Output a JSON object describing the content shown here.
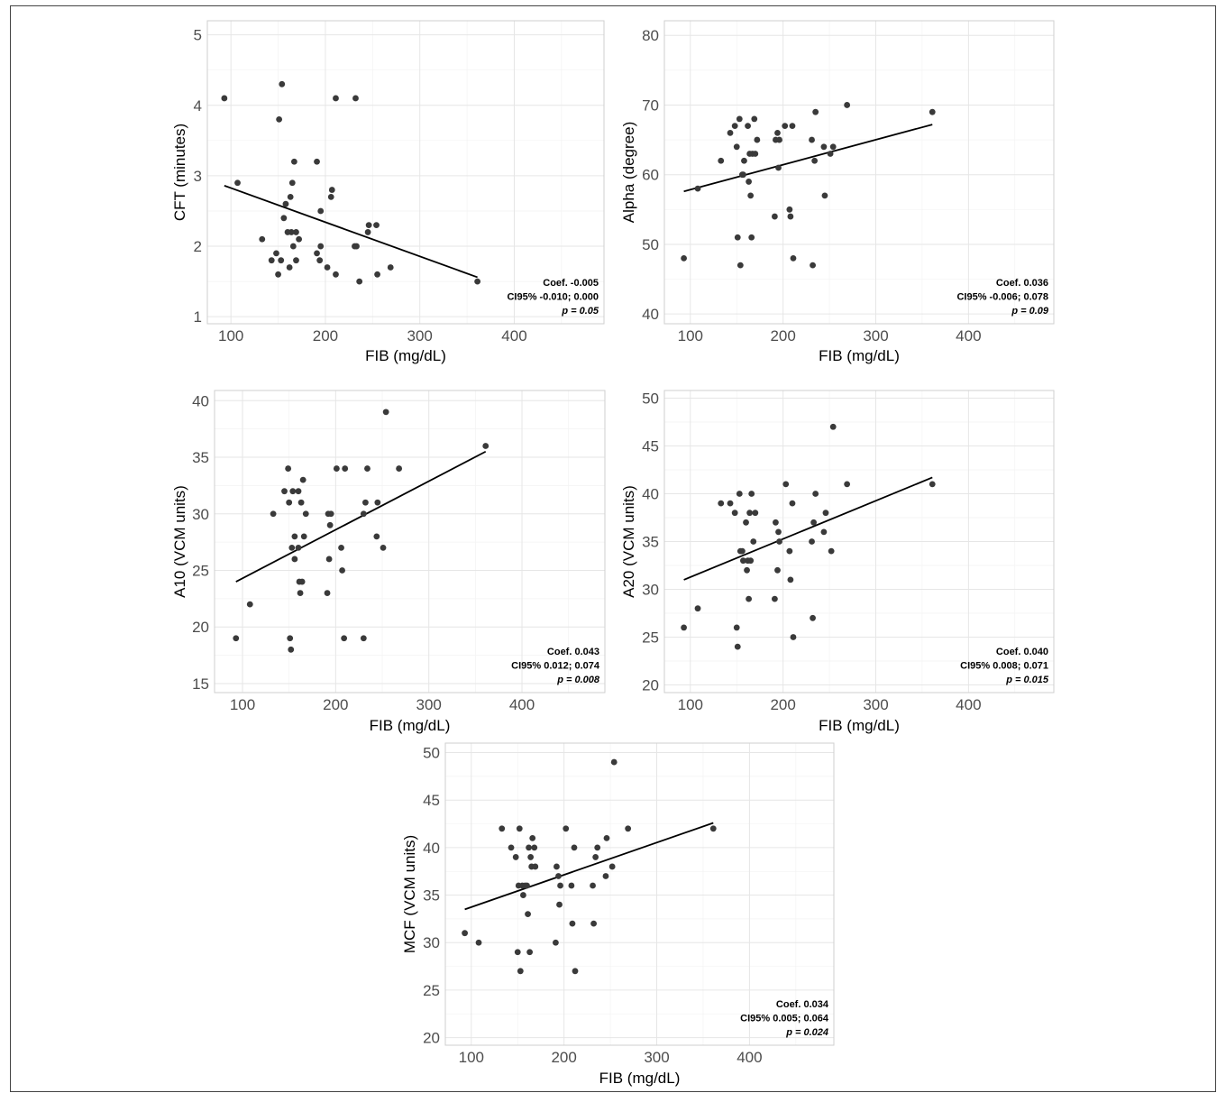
{
  "chart_data": [
    {
      "type": "scatter",
      "xlabel": "FIB (mg/dL)",
      "ylabel": "CFT (minutes)",
      "xlim": [
        75,
        495
      ],
      "ylim": [
        0.9,
        5.2
      ],
      "xticks": [
        100,
        200,
        300,
        400
      ],
      "yticks": [
        1,
        2,
        3,
        4,
        5
      ],
      "points": [
        [
          93,
          4.1
        ],
        [
          107,
          2.9
        ],
        [
          133,
          2.1
        ],
        [
          143,
          1.8
        ],
        [
          148,
          1.9
        ],
        [
          150,
          1.6
        ],
        [
          151,
          3.8
        ],
        [
          153,
          1.8
        ],
        [
          154,
          4.3
        ],
        [
          156,
          2.4
        ],
        [
          158,
          2.6
        ],
        [
          160,
          2.2
        ],
        [
          162,
          1.7
        ],
        [
          163,
          2.7
        ],
        [
          164,
          2.2
        ],
        [
          165,
          2.9
        ],
        [
          166,
          2.0
        ],
        [
          167,
          3.2
        ],
        [
          169,
          1.8
        ],
        [
          169,
          2.2
        ],
        [
          172,
          2.1
        ],
        [
          191,
          1.9
        ],
        [
          191,
          3.2
        ],
        [
          194,
          1.8
        ],
        [
          195,
          2.5
        ],
        [
          195,
          2.0
        ],
        [
          202,
          1.7
        ],
        [
          206,
          2.7
        ],
        [
          207,
          2.8
        ],
        [
          211,
          4.1
        ],
        [
          211,
          1.6
        ],
        [
          231,
          2.0
        ],
        [
          232,
          4.1
        ],
        [
          233,
          2.0
        ],
        [
          236,
          1.5
        ],
        [
          245,
          2.2
        ],
        [
          246,
          2.3
        ],
        [
          254,
          2.3
        ],
        [
          255,
          1.6
        ],
        [
          269,
          1.7
        ],
        [
          361,
          1.5
        ]
      ],
      "fit_line": {
        "x": [
          93,
          361
        ],
        "y": [
          2.86,
          1.56
        ]
      },
      "annotation": {
        "coef": "Coef. -0.005",
        "ci": "CI95% -0.010; 0.000",
        "p": "p = 0.05"
      }
    },
    {
      "type": "scatter",
      "xlabel": "FIB (mg/dL)",
      "ylabel": "Alpha (degree)",
      "xlim": [
        72,
        492
      ],
      "ylim": [
        38.6,
        82.1
      ],
      "xticks": [
        100,
        200,
        300,
        400
      ],
      "yticks": [
        40,
        50,
        60,
        70,
        80
      ],
      "points": [
        [
          93,
          48
        ],
        [
          108,
          58
        ],
        [
          133,
          62
        ],
        [
          143,
          66
        ],
        [
          148,
          67
        ],
        [
          150,
          64
        ],
        [
          151,
          51
        ],
        [
          153,
          68
        ],
        [
          154,
          47
        ],
        [
          156,
          60
        ],
        [
          157,
          60
        ],
        [
          158,
          62
        ],
        [
          162,
          67
        ],
        [
          163,
          59
        ],
        [
          164,
          63
        ],
        [
          165,
          57
        ],
        [
          166,
          51
        ],
        [
          167,
          63
        ],
        [
          169,
          68
        ],
        [
          170,
          63
        ],
        [
          172,
          65
        ],
        [
          191,
          54
        ],
        [
          192,
          65
        ],
        [
          194,
          66
        ],
        [
          195,
          61
        ],
        [
          196,
          65
        ],
        [
          202,
          67
        ],
        [
          207,
          55
        ],
        [
          208,
          54
        ],
        [
          210,
          67
        ],
        [
          211,
          48
        ],
        [
          231,
          65
        ],
        [
          232,
          47
        ],
        [
          234,
          62
        ],
        [
          235,
          69
        ],
        [
          244,
          64
        ],
        [
          245,
          57
        ],
        [
          251,
          63
        ],
        [
          254,
          64
        ],
        [
          269,
          70
        ],
        [
          361,
          69
        ]
      ],
      "fit_line": {
        "x": [
          93,
          361
        ],
        "y": [
          57.6,
          67.2
        ]
      },
      "annotation": {
        "coef": "Coef. 0.036",
        "ci": "CI95% -0.006; 0.078",
        "p": "p = 0.09"
      }
    },
    {
      "type": "scatter",
      "xlabel": "FIB (mg/dL)",
      "ylabel": "A10 (VCM units)",
      "xlim": [
        70,
        489
      ],
      "ylim": [
        14.2,
        40.9
      ],
      "xticks": [
        100,
        200,
        300,
        400
      ],
      "yticks": [
        15,
        20,
        25,
        30,
        35,
        40
      ],
      "points": [
        [
          93,
          19
        ],
        [
          108,
          22
        ],
        [
          133,
          30
        ],
        [
          145,
          32
        ],
        [
          149,
          34
        ],
        [
          150,
          31
        ],
        [
          151,
          19
        ],
        [
          152,
          18
        ],
        [
          153,
          27
        ],
        [
          154,
          32
        ],
        [
          156,
          26
        ],
        [
          156,
          28
        ],
        [
          160,
          32
        ],
        [
          160,
          27
        ],
        [
          161,
          24
        ],
        [
          162,
          23
        ],
        [
          163,
          31
        ],
        [
          164,
          24
        ],
        [
          165,
          33
        ],
        [
          166,
          28
        ],
        [
          168,
          30
        ],
        [
          191,
          23
        ],
        [
          192,
          30
        ],
        [
          193,
          26
        ],
        [
          194,
          29
        ],
        [
          195,
          30
        ],
        [
          201,
          34
        ],
        [
          206,
          27
        ],
        [
          207,
          25
        ],
        [
          209,
          19
        ],
        [
          210,
          34
        ],
        [
          230,
          30
        ],
        [
          230,
          19
        ],
        [
          232,
          31
        ],
        [
          234,
          34
        ],
        [
          244,
          28
        ],
        [
          245,
          31
        ],
        [
          251,
          27
        ],
        [
          254,
          39
        ],
        [
          268,
          34
        ],
        [
          361,
          36
        ]
      ],
      "fit_line": {
        "x": [
          93,
          361
        ],
        "y": [
          24.0,
          35.5
        ]
      },
      "annotation": {
        "coef": "Coef. 0.043",
        "ci": "CI95% 0.012; 0.074",
        "p": "p = 0.008"
      }
    },
    {
      "type": "scatter",
      "xlabel": "FIB (mg/dL)",
      "ylabel": "A20 (VCM units)",
      "xlim": [
        72,
        492
      ],
      "ylim": [
        19.2,
        50.8
      ],
      "xticks": [
        100,
        200,
        300,
        400
      ],
      "yticks": [
        20,
        25,
        30,
        35,
        40,
        45,
        50
      ],
      "points": [
        [
          93,
          26
        ],
        [
          108,
          28
        ],
        [
          133,
          39
        ],
        [
          143,
          39
        ],
        [
          148,
          38
        ],
        [
          150,
          26
        ],
        [
          151,
          24
        ],
        [
          153,
          40
        ],
        [
          154,
          34
        ],
        [
          156,
          34
        ],
        [
          157,
          33
        ],
        [
          160,
          37
        ],
        [
          161,
          32
        ],
        [
          162,
          33
        ],
        [
          163,
          29
        ],
        [
          164,
          38
        ],
        [
          165,
          33
        ],
        [
          166,
          40
        ],
        [
          168,
          35
        ],
        [
          170,
          38
        ],
        [
          191,
          29
        ],
        [
          192,
          37
        ],
        [
          194,
          32
        ],
        [
          195,
          36
        ],
        [
          196,
          35
        ],
        [
          203,
          41
        ],
        [
          207,
          34
        ],
        [
          208,
          31
        ],
        [
          210,
          39
        ],
        [
          211,
          25
        ],
        [
          231,
          35
        ],
        [
          232,
          27
        ],
        [
          233,
          37
        ],
        [
          235,
          40
        ],
        [
          244,
          36
        ],
        [
          246,
          38
        ],
        [
          252,
          34
        ],
        [
          254,
          47
        ],
        [
          269,
          41
        ],
        [
          361,
          41
        ]
      ],
      "fit_line": {
        "x": [
          93,
          361
        ],
        "y": [
          31.0,
          41.7
        ]
      },
      "annotation": {
        "coef": "Coef. 0.040",
        "ci": "CI95% 0.008; 0.071",
        "p": "p = 0.015"
      }
    },
    {
      "type": "scatter",
      "xlabel": "FIB (mg/dL)",
      "ylabel": "MCF (VCM units)",
      "xlim": [
        72,
        491
      ],
      "ylim": [
        19.2,
        51.0
      ],
      "xticks": [
        100,
        200,
        300,
        400
      ],
      "yticks": [
        20,
        25,
        30,
        35,
        40,
        45,
        50
      ],
      "points": [
        [
          93,
          31
        ],
        [
          108,
          30
        ],
        [
          133,
          42
        ],
        [
          143,
          40
        ],
        [
          148,
          39
        ],
        [
          150,
          29
        ],
        [
          151,
          36
        ],
        [
          152,
          42
        ],
        [
          153,
          27
        ],
        [
          155,
          36
        ],
        [
          156,
          35
        ],
        [
          158,
          36
        ],
        [
          160,
          36
        ],
        [
          161,
          33
        ],
        [
          162,
          40
        ],
        [
          163,
          29
        ],
        [
          164,
          39
        ],
        [
          165,
          38
        ],
        [
          166,
          41
        ],
        [
          168,
          40
        ],
        [
          169,
          38
        ],
        [
          191,
          30
        ],
        [
          192,
          38
        ],
        [
          194,
          37
        ],
        [
          195,
          34
        ],
        [
          196,
          36
        ],
        [
          202,
          42
        ],
        [
          208,
          36
        ],
        [
          209,
          32
        ],
        [
          211,
          40
        ],
        [
          212,
          27
        ],
        [
          231,
          36
        ],
        [
          232,
          32
        ],
        [
          234,
          39
        ],
        [
          236,
          40
        ],
        [
          245,
          37
        ],
        [
          246,
          41
        ],
        [
          252,
          38
        ],
        [
          254,
          49
        ],
        [
          269,
          42
        ],
        [
          361,
          42
        ]
      ],
      "fit_line": {
        "x": [
          93,
          361
        ],
        "y": [
          33.5,
          42.6
        ]
      },
      "annotation": {
        "coef": "Coef. 0.034",
        "ci": "CI95% 0.005; 0.064",
        "p": "p = 0.024"
      }
    }
  ]
}
